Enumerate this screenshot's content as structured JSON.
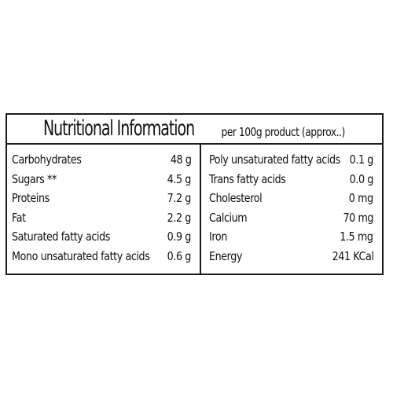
{
  "title": "Nutritional Information",
  "subtitle": "per 100g product (approx..)",
  "left_rows": [
    {
      "label": "Carbohydrates",
      "value": "48 g"
    },
    {
      "label": "Sugars **",
      "value": "4.5 g"
    },
    {
      "label": "Proteins",
      "value": "7.2 g"
    },
    {
      "label": "Fat",
      "value": "2.2 g"
    },
    {
      "label": "Saturated fatty acids",
      "value": "0.9 g"
    },
    {
      "label": "Mono unsaturated fatty acids",
      "value": "0.6 g"
    }
  ],
  "right_rows": [
    {
      "label": "Poly unsaturated fatty acids",
      "value": "0.1 g"
    },
    {
      "label": "Trans fatty acids",
      "value": "0.0 g"
    },
    {
      "label": "Cholesterol",
      "value": "0 mg"
    },
    {
      "label": "Calcium",
      "value": "70 mg"
    },
    {
      "label": "Iron",
      "value": "1.5 mg"
    },
    {
      "label": "Energy",
      "value": "241 KCal"
    }
  ]
}
